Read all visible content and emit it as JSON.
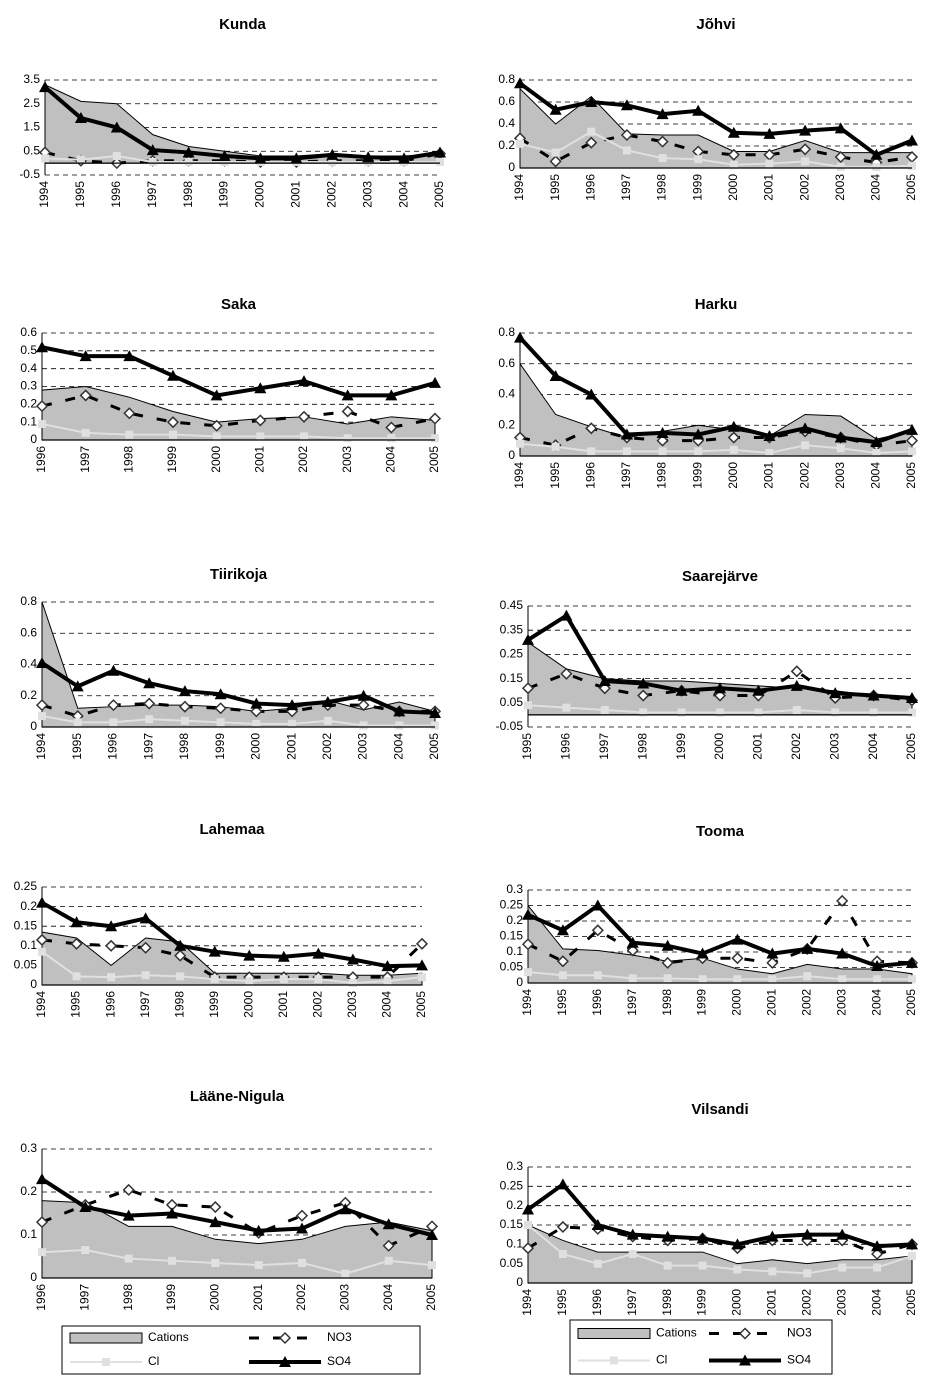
{
  "chart_data": [
    {
      "type": "line",
      "title": "Kunda",
      "categories": [
        "1994",
        "1995",
        "1996",
        "1997",
        "1998",
        "1999",
        "2000",
        "2001",
        "2002",
        "2003",
        "2004",
        "2005"
      ],
      "ylim": [
        -0.5,
        3.5
      ],
      "yticks": [
        -0.5,
        0.5,
        1.5,
        2.5,
        3.5
      ],
      "grid": true,
      "series": [
        {
          "name": "Cations",
          "style": "area",
          "marker": "none",
          "color": "#c0c0c0",
          "values": [
            3.3,
            2.6,
            2.5,
            1.2,
            0.7,
            0.5,
            0.3,
            0.3,
            0.4,
            0.3,
            0.3,
            0.4
          ]
        },
        {
          "name": "NO3",
          "style": "dashed",
          "marker": "diamond",
          "color": "#000000",
          "values": [
            0.45,
            0.1,
            0.0,
            0.1,
            0.1,
            0.1,
            0.05,
            0.05,
            0.1,
            0.1,
            0.1,
            0.4
          ]
        },
        {
          "name": "Cl",
          "style": "thin",
          "marker": "square",
          "color": "#e0e0e0",
          "values": [
            0.2,
            0.15,
            0.3,
            0.05,
            0.05,
            0.05,
            0.05,
            0.05,
            0.05,
            0.05,
            0.05,
            0.05
          ]
        },
        {
          "name": "SO4",
          "style": "thick",
          "marker": "triangle",
          "color": "#000000",
          "values": [
            3.2,
            1.9,
            1.5,
            0.55,
            0.45,
            0.3,
            0.2,
            0.2,
            0.35,
            0.25,
            0.2,
            0.45
          ]
        }
      ]
    },
    {
      "type": "line",
      "title": "Jõhvi",
      "categories": [
        "1994",
        "1995",
        "1996",
        "1997",
        "1998",
        "1999",
        "2000",
        "2001",
        "2002",
        "2003",
        "2004",
        "2005"
      ],
      "ylim": [
        0,
        0.8
      ],
      "yticks": [
        0,
        0.2,
        0.4,
        0.6,
        0.8
      ],
      "grid": true,
      "series": [
        {
          "name": "Cations",
          "style": "area",
          "marker": "none",
          "color": "#c0c0c0",
          "values": [
            0.72,
            0.4,
            0.65,
            0.31,
            0.3,
            0.3,
            0.15,
            0.15,
            0.25,
            0.14,
            0.14,
            0.14
          ]
        },
        {
          "name": "NO3",
          "style": "dashed",
          "marker": "diamond",
          "color": "#000000",
          "values": [
            0.27,
            0.06,
            0.23,
            0.3,
            0.24,
            0.15,
            0.12,
            0.12,
            0.17,
            0.1,
            0.05,
            0.1
          ]
        },
        {
          "name": "Cl",
          "style": "thin",
          "marker": "square",
          "color": "#e0e0e0",
          "values": [
            0.22,
            0.14,
            0.33,
            0.16,
            0.09,
            0.08,
            0.03,
            0.04,
            0.06,
            0.01,
            0.01,
            0.02
          ]
        },
        {
          "name": "SO4",
          "style": "thick",
          "marker": "triangle",
          "color": "#000000",
          "values": [
            0.77,
            0.53,
            0.6,
            0.57,
            0.49,
            0.52,
            0.32,
            0.31,
            0.34,
            0.36,
            0.12,
            0.25
          ]
        }
      ]
    },
    {
      "type": "line",
      "title": "Saka",
      "categories": [
        "1996",
        "1997",
        "1998",
        "1999",
        "2000",
        "2001",
        "2002",
        "2003",
        "2004",
        "2005"
      ],
      "ylim": [
        0,
        0.6
      ],
      "yticks": [
        0,
        0.1,
        0.2,
        0.3,
        0.4,
        0.5,
        0.6
      ],
      "grid": true,
      "series": [
        {
          "name": "Cations",
          "style": "area",
          "marker": "none",
          "color": "#c0c0c0",
          "values": [
            0.28,
            0.3,
            0.24,
            0.16,
            0.1,
            0.12,
            0.13,
            0.09,
            0.13,
            0.11
          ]
        },
        {
          "name": "NO3",
          "style": "dashed",
          "marker": "diamond",
          "color": "#000000",
          "values": [
            0.19,
            0.25,
            0.15,
            0.1,
            0.08,
            0.11,
            0.13,
            0.16,
            0.07,
            0.12
          ]
        },
        {
          "name": "Cl",
          "style": "thin",
          "marker": "square",
          "color": "#e0e0e0",
          "values": [
            0.09,
            0.04,
            0.03,
            0.03,
            0.02,
            0.02,
            0.02,
            0.01,
            0.01,
            0.01
          ]
        },
        {
          "name": "SO4",
          "style": "thick",
          "marker": "triangle",
          "color": "#000000",
          "values": [
            0.52,
            0.47,
            0.47,
            0.36,
            0.25,
            0.29,
            0.33,
            0.25,
            0.25,
            0.32
          ]
        }
      ]
    },
    {
      "type": "line",
      "title": "Harku",
      "categories": [
        "1994",
        "1995",
        "1996",
        "1997",
        "1998",
        "1999",
        "2000",
        "2001",
        "2002",
        "2003",
        "2004",
        "2005"
      ],
      "ylim": [
        0,
        0.8
      ],
      "yticks": [
        0,
        0.2,
        0.4,
        0.6,
        0.8
      ],
      "grid": true,
      "series": [
        {
          "name": "Cations",
          "style": "area",
          "marker": "none",
          "color": "#c0c0c0",
          "values": [
            0.6,
            0.27,
            0.19,
            0.12,
            0.16,
            0.2,
            0.17,
            0.13,
            0.27,
            0.26,
            0.11,
            0.16
          ]
        },
        {
          "name": "NO3",
          "style": "dashed",
          "marker": "diamond",
          "color": "#000000",
          "values": [
            0.12,
            0.07,
            0.18,
            0.12,
            0.1,
            0.1,
            0.12,
            0.12,
            0.16,
            0.12,
            0.07,
            0.1
          ]
        },
        {
          "name": "Cl",
          "style": "thin",
          "marker": "square",
          "color": "#e0e0e0",
          "values": [
            0.08,
            0.06,
            0.03,
            0.03,
            0.03,
            0.03,
            0.04,
            0.02,
            0.07,
            0.05,
            0.02,
            0.03
          ]
        },
        {
          "name": "SO4",
          "style": "thick",
          "marker": "triangle",
          "color": "#000000",
          "values": [
            0.77,
            0.52,
            0.4,
            0.14,
            0.15,
            0.14,
            0.19,
            0.13,
            0.18,
            0.12,
            0.09,
            0.17
          ]
        }
      ]
    },
    {
      "type": "line",
      "title": "Tiirikoja",
      "categories": [
        "1994",
        "1995",
        "1996",
        "1997",
        "1998",
        "1999",
        "2000",
        "2001",
        "2002",
        "2003",
        "2004",
        "2005"
      ],
      "ylim": [
        0,
        0.8
      ],
      "yticks": [
        0,
        0.2,
        0.4,
        0.6,
        0.8
      ],
      "grid": true,
      "series": [
        {
          "name": "Cations",
          "style": "area",
          "marker": "none",
          "color": "#c0c0c0",
          "values": [
            0.8,
            0.12,
            0.13,
            0.14,
            0.14,
            0.13,
            0.1,
            0.12,
            0.17,
            0.11,
            0.16,
            0.1
          ]
        },
        {
          "name": "NO3",
          "style": "dashed",
          "marker": "diamond",
          "color": "#000000",
          "values": [
            0.14,
            0.07,
            0.14,
            0.15,
            0.13,
            0.12,
            0.1,
            0.1,
            0.14,
            0.14,
            0.1,
            0.1
          ]
        },
        {
          "name": "Cl",
          "style": "thin",
          "marker": "square",
          "color": "#e0e0e0",
          "values": [
            0.07,
            0.03,
            0.03,
            0.05,
            0.04,
            0.03,
            0.02,
            0.02,
            0.04,
            0.01,
            0.01,
            0.01
          ]
        },
        {
          "name": "SO4",
          "style": "thick",
          "marker": "triangle",
          "color": "#000000",
          "values": [
            0.41,
            0.26,
            0.36,
            0.28,
            0.23,
            0.21,
            0.15,
            0.14,
            0.16,
            0.2,
            0.1,
            0.09
          ]
        }
      ]
    },
    {
      "type": "line",
      "title": "Saarejärve",
      "categories": [
        "1995",
        "1996",
        "1997",
        "1998",
        "1999",
        "2000",
        "2001",
        "2002",
        "2003",
        "2004",
        "2005"
      ],
      "ylim": [
        -0.05,
        0.45
      ],
      "yticks": [
        -0.05,
        0.05,
        0.15,
        0.25,
        0.35,
        0.45
      ],
      "grid": true,
      "series": [
        {
          "name": "Cations",
          "style": "area",
          "marker": "none",
          "color": "#c0c0c0",
          "values": [
            0.3,
            0.19,
            0.15,
            0.14,
            0.14,
            0.13,
            0.12,
            0.11,
            0.1,
            0.08,
            0.07
          ]
        },
        {
          "name": "NO3",
          "style": "dashed",
          "marker": "diamond",
          "color": "#000000",
          "values": [
            0.11,
            0.17,
            0.11,
            0.08,
            0.1,
            0.08,
            0.08,
            0.18,
            0.07,
            0.08,
            0.06
          ]
        },
        {
          "name": "Cl",
          "style": "thin",
          "marker": "square",
          "color": "#e0e0e0",
          "values": [
            0.04,
            0.03,
            0.02,
            0.01,
            0.01,
            0.01,
            0.01,
            0.02,
            0.01,
            0.01,
            0.01
          ]
        },
        {
          "name": "SO4",
          "style": "thick",
          "marker": "triangle",
          "color": "#000000",
          "values": [
            0.31,
            0.41,
            0.14,
            0.13,
            0.1,
            0.11,
            0.1,
            0.12,
            0.09,
            0.08,
            0.07
          ]
        }
      ]
    },
    {
      "type": "line",
      "title": "Lahemaa",
      "categories": [
        "1994",
        "1995",
        "1996",
        "1997",
        "1998",
        "1999",
        "2000",
        "2001",
        "2002",
        "2003",
        "2004",
        "2005"
      ],
      "ylim": [
        0,
        0.25
      ],
      "yticks": [
        0,
        0.05,
        0.1,
        0.15,
        0.2,
        0.25
      ],
      "grid": true,
      "series": [
        {
          "name": "Cations",
          "style": "area",
          "marker": "none",
          "color": "#c0c0c0",
          "values": [
            0.135,
            0.12,
            0.05,
            0.12,
            0.11,
            0.03,
            0.03,
            0.03,
            0.03,
            0.025,
            0.025,
            0.03
          ]
        },
        {
          "name": "NO3",
          "style": "dashed",
          "marker": "diamond",
          "color": "#000000",
          "values": [
            0.115,
            0.105,
            0.1,
            0.095,
            0.075,
            0.02,
            0.02,
            0.02,
            0.02,
            0.02,
            0.02,
            0.105
          ]
        },
        {
          "name": "Cl",
          "style": "thin",
          "marker": "square",
          "color": "#e0e0e0",
          "values": [
            0.085,
            0.022,
            0.02,
            0.025,
            0.022,
            0.015,
            0.01,
            0.015,
            0.015,
            0.005,
            0.01,
            0.02
          ]
        },
        {
          "name": "SO4",
          "style": "thick",
          "marker": "triangle",
          "color": "#000000",
          "values": [
            0.21,
            0.16,
            0.15,
            0.17,
            0.1,
            0.085,
            0.075,
            0.072,
            0.08,
            0.065,
            0.048,
            0.05
          ]
        }
      ]
    },
    {
      "type": "line",
      "title": "Tooma",
      "categories": [
        "1994",
        "1995",
        "1996",
        "1997",
        "1998",
        "1999",
        "2000",
        "2001",
        "2002",
        "2003",
        "2004",
        "2005"
      ],
      "ylim": [
        0,
        0.3
      ],
      "yticks": [
        0,
        0.05,
        0.1,
        0.15,
        0.2,
        0.25,
        0.3
      ],
      "grid": true,
      "series": [
        {
          "name": "Cations",
          "style": "area",
          "marker": "none",
          "color": "#c0c0c0",
          "values": [
            0.25,
            0.11,
            0.105,
            0.09,
            0.07,
            0.08,
            0.045,
            0.03,
            0.06,
            0.045,
            0.045,
            0.03
          ]
        },
        {
          "name": "NO3",
          "style": "dashed",
          "marker": "diamond",
          "color": "#000000",
          "values": [
            0.125,
            0.07,
            0.17,
            0.105,
            0.065,
            0.08,
            0.08,
            0.065,
            0.11,
            0.265,
            0.07,
            0.065
          ]
        },
        {
          "name": "Cl",
          "style": "thin",
          "marker": "square",
          "color": "#e0e0e0",
          "values": [
            0.035,
            0.025,
            0.025,
            0.015,
            0.015,
            0.012,
            0.012,
            0.012,
            0.022,
            0.012,
            0.012,
            0.012
          ]
        },
        {
          "name": "SO4",
          "style": "thick",
          "marker": "triangle",
          "color": "#000000",
          "values": [
            0.22,
            0.17,
            0.25,
            0.13,
            0.12,
            0.095,
            0.14,
            0.095,
            0.11,
            0.095,
            0.055,
            0.065
          ]
        }
      ]
    },
    {
      "type": "line",
      "title": "Lääne-Nigula",
      "categories": [
        "1996",
        "1997",
        "1998",
        "1999",
        "2000",
        "2001",
        "2002",
        "2003",
        "2004",
        "2005"
      ],
      "ylim": [
        0,
        0.3
      ],
      "yticks": [
        0,
        0.1,
        0.2,
        0.3
      ],
      "grid": true,
      "series": [
        {
          "name": "Cations",
          "style": "area",
          "marker": "none",
          "color": "#c0c0c0",
          "values": [
            0.18,
            0.175,
            0.12,
            0.12,
            0.09,
            0.08,
            0.09,
            0.12,
            0.13,
            0.11
          ]
        },
        {
          "name": "NO3",
          "style": "dashed",
          "marker": "diamond",
          "color": "#000000",
          "values": [
            0.13,
            0.17,
            0.205,
            0.17,
            0.165,
            0.105,
            0.145,
            0.175,
            0.075,
            0.12
          ]
        },
        {
          "name": "Cl",
          "style": "thin",
          "marker": "square",
          "color": "#e0e0e0",
          "values": [
            0.06,
            0.065,
            0.045,
            0.04,
            0.035,
            0.03,
            0.035,
            0.01,
            0.04,
            0.03
          ]
        },
        {
          "name": "SO4",
          "style": "thick",
          "marker": "triangle",
          "color": "#000000",
          "values": [
            0.23,
            0.165,
            0.145,
            0.15,
            0.13,
            0.11,
            0.115,
            0.16,
            0.125,
            0.1
          ]
        }
      ]
    },
    {
      "type": "line",
      "title": "Vilsandi",
      "categories": [
        "1994",
        "1995",
        "1996",
        "1997",
        "1998",
        "1999",
        "2000",
        "2001",
        "2002",
        "2003",
        "2004",
        "2005"
      ],
      "ylim": [
        0,
        0.3
      ],
      "yticks": [
        0,
        0.05,
        0.1,
        0.15,
        0.2,
        0.25,
        0.3
      ],
      "grid": true,
      "series": [
        {
          "name": "Cations",
          "style": "area",
          "marker": "none",
          "color": "#c0c0c0",
          "values": [
            0.15,
            0.11,
            0.08,
            0.08,
            0.08,
            0.08,
            0.05,
            0.06,
            0.05,
            0.06,
            0.06,
            0.07
          ]
        },
        {
          "name": "NO3",
          "style": "dashed",
          "marker": "diamond",
          "color": "#000000",
          "values": [
            0.09,
            0.145,
            0.14,
            0.12,
            0.11,
            0.115,
            0.09,
            0.11,
            0.11,
            0.11,
            0.075,
            0.1
          ]
        },
        {
          "name": "Cl",
          "style": "thin",
          "marker": "square",
          "color": "#e0e0e0",
          "values": [
            0.15,
            0.075,
            0.05,
            0.075,
            0.045,
            0.045,
            0.035,
            0.03,
            0.025,
            0.04,
            0.04,
            0.07
          ]
        },
        {
          "name": "SO4",
          "style": "thick",
          "marker": "triangle",
          "color": "#000000",
          "values": [
            0.19,
            0.255,
            0.15,
            0.125,
            0.12,
            0.115,
            0.1,
            0.12,
            0.125,
            0.125,
            0.095,
            0.1
          ]
        }
      ]
    }
  ]
}
